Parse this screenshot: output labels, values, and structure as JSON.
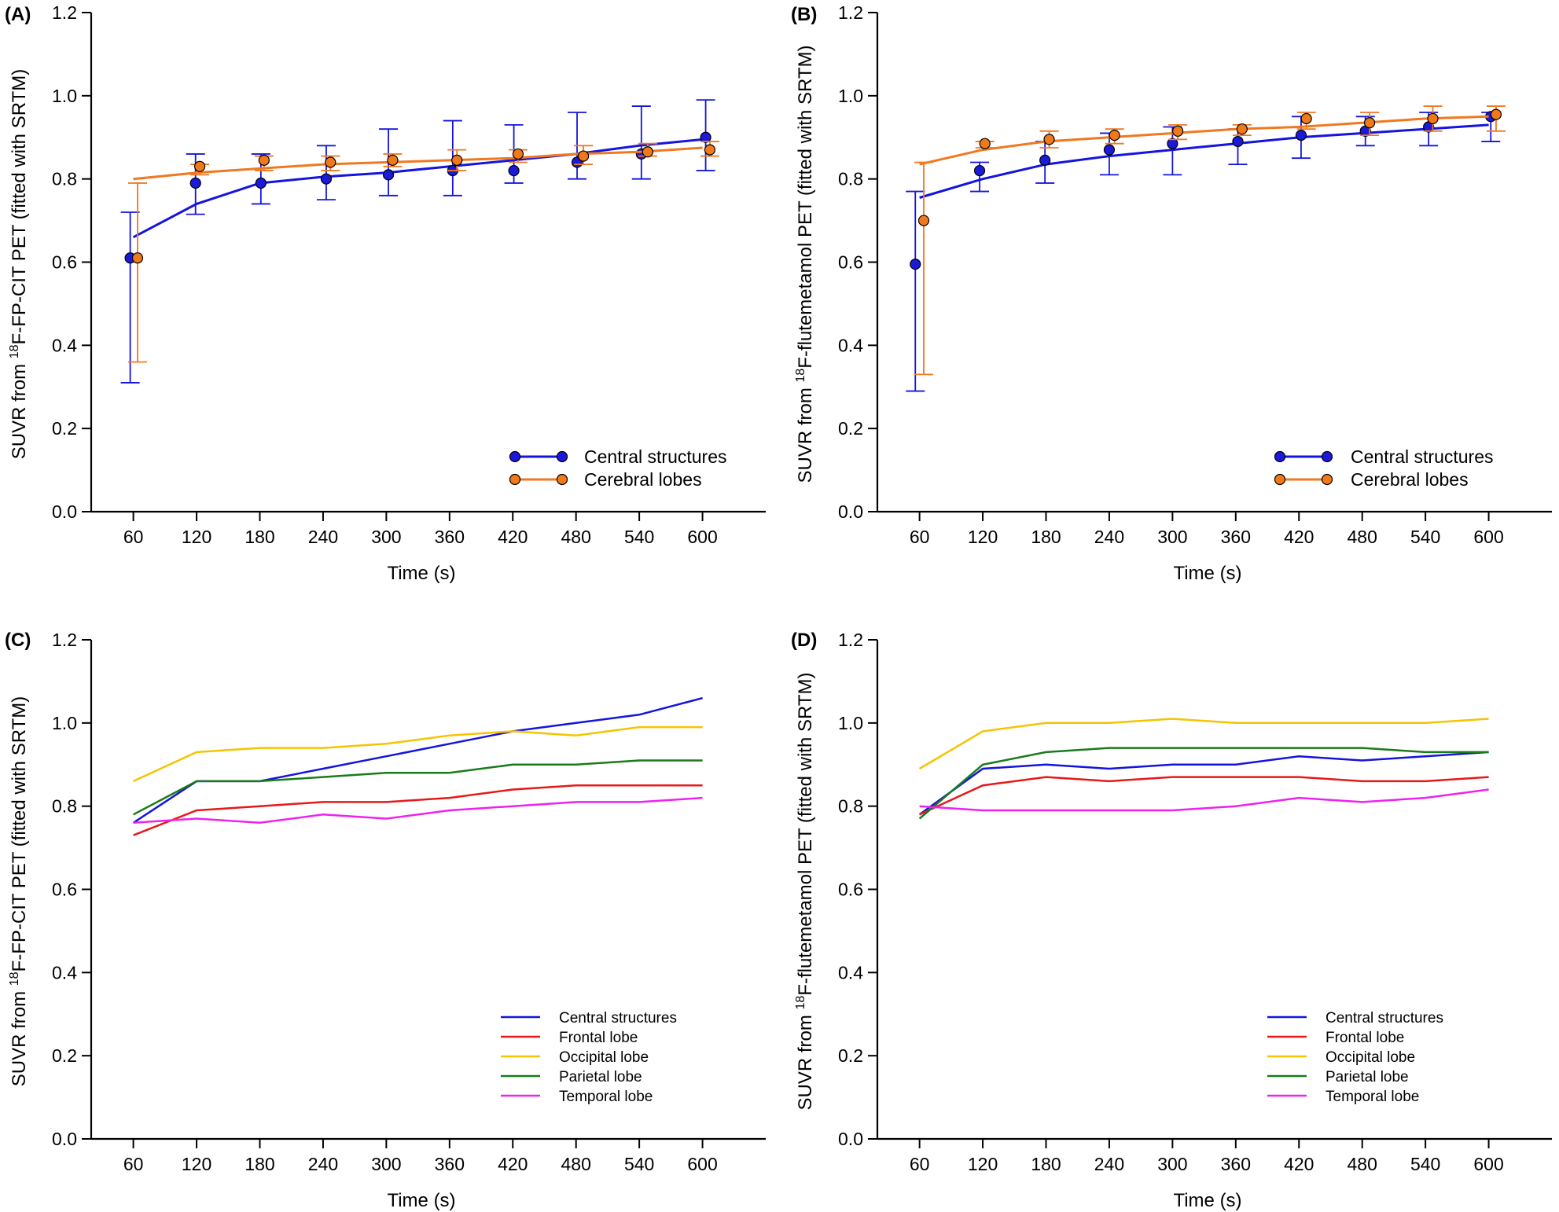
{
  "colors": {
    "central": "#1414e0",
    "cerebral": "#f07820",
    "frontal": "#e81818",
    "occipital": "#f5c400",
    "parietal": "#1b7a1b",
    "temporal": "#ee22ee",
    "markerCentral": "#1a1ad8",
    "markerCerebral": "#f07a1a",
    "axis": "#000000"
  },
  "chart_data": [
    {
      "id": "A",
      "panel_label": "(A)",
      "type": "line",
      "xlabel": "Time (s)",
      "ylabel_pre": "SUVR from ",
      "ylabel_sup": "18",
      "ylabel_post": "F-FP-CIT PET (fitted with SRTM)",
      "xlim": [
        20,
        660
      ],
      "ylim": [
        0,
        1.2
      ],
      "x_ticks": [
        60,
        120,
        180,
        240,
        300,
        360,
        420,
        480,
        540,
        600
      ],
      "y_ticks": [
        "0.0",
        "0.2",
        "0.4",
        "0.6",
        "0.8",
        "1.0",
        "1.2"
      ],
      "legend_position": "bottom-right",
      "series": [
        {
          "name": "Central structures",
          "color_key": "central",
          "marker": "circle",
          "fit_x": [
            60,
            120,
            180,
            240,
            300,
            360,
            420,
            480,
            540,
            600
          ],
          "fit_y": [
            0.66,
            0.74,
            0.79,
            0.805,
            0.815,
            0.83,
            0.845,
            0.86,
            0.88,
            0.895
          ],
          "points_x": [
            57,
            119,
            181,
            243,
            302,
            363,
            421,
            481,
            542,
            603
          ],
          "points_y": [
            0.61,
            0.79,
            0.79,
            0.8,
            0.81,
            0.82,
            0.82,
            0.84,
            0.86,
            0.9
          ],
          "err_low": [
            0.31,
            0.715,
            0.74,
            0.75,
            0.76,
            0.76,
            0.79,
            0.8,
            0.8,
            0.82
          ],
          "err_high": [
            0.72,
            0.86,
            0.86,
            0.88,
            0.92,
            0.94,
            0.93,
            0.96,
            0.975,
            0.99
          ]
        },
        {
          "name": "Cerebral lobes",
          "color_key": "cerebral",
          "marker": "circle",
          "fit_x": [
            60,
            120,
            180,
            240,
            300,
            360,
            420,
            480,
            540,
            600
          ],
          "fit_y": [
            0.8,
            0.815,
            0.825,
            0.835,
            0.84,
            0.845,
            0.85,
            0.86,
            0.865,
            0.875
          ],
          "points_x": [
            64,
            123,
            184,
            247,
            306,
            367,
            425,
            487,
            548,
            607
          ],
          "points_y": [
            0.61,
            0.83,
            0.845,
            0.84,
            0.845,
            0.845,
            0.86,
            0.855,
            0.865,
            0.87
          ],
          "err_low": [
            0.36,
            0.81,
            0.82,
            0.82,
            0.83,
            0.82,
            0.84,
            0.835,
            0.855,
            0.855
          ],
          "err_high": [
            0.79,
            0.835,
            0.855,
            0.855,
            0.86,
            0.87,
            0.87,
            0.88,
            0.885,
            0.89
          ]
        }
      ]
    },
    {
      "id": "B",
      "panel_label": "(B)",
      "type": "line",
      "xlabel": "Time (s)",
      "ylabel_pre": "SUVR from ",
      "ylabel_sup": "18",
      "ylabel_post": "F-flutemetamol PET (fitted with SRTM)",
      "xlim": [
        20,
        660
      ],
      "ylim": [
        0,
        1.2
      ],
      "x_ticks": [
        60,
        120,
        180,
        240,
        300,
        360,
        420,
        480,
        540,
        600
      ],
      "y_ticks": [
        "0.0",
        "0.2",
        "0.4",
        "0.6",
        "0.8",
        "1.0",
        "1.2"
      ],
      "legend_position": "bottom-right",
      "series": [
        {
          "name": "Central structures",
          "color_key": "central",
          "marker": "circle",
          "fit_x": [
            60,
            120,
            180,
            240,
            300,
            360,
            420,
            480,
            540,
            600
          ],
          "fit_y": [
            0.755,
            0.8,
            0.835,
            0.855,
            0.87,
            0.885,
            0.9,
            0.91,
            0.92,
            0.93
          ],
          "points_x": [
            56,
            117,
            179,
            240,
            300,
            362,
            422,
            483,
            543,
            602
          ],
          "points_y": [
            0.595,
            0.82,
            0.845,
            0.87,
            0.885,
            0.89,
            0.905,
            0.915,
            0.925,
            0.95
          ],
          "err_low": [
            0.29,
            0.77,
            0.79,
            0.81,
            0.81,
            0.835,
            0.85,
            0.88,
            0.88,
            0.89
          ],
          "err_high": [
            0.77,
            0.84,
            0.89,
            0.91,
            0.925,
            0.92,
            0.95,
            0.95,
            0.96,
            0.96
          ]
        },
        {
          "name": "Cerebral lobes",
          "color_key": "cerebral",
          "marker": "circle",
          "fit_x": [
            60,
            120,
            180,
            240,
            300,
            360,
            420,
            480,
            540,
            600
          ],
          "fit_y": [
            0.835,
            0.87,
            0.89,
            0.9,
            0.91,
            0.92,
            0.925,
            0.935,
            0.945,
            0.95
          ],
          "points_x": [
            64,
            122,
            183,
            245,
            305,
            366,
            427,
            487,
            547,
            607
          ],
          "points_y": [
            0.7,
            0.885,
            0.895,
            0.905,
            0.915,
            0.92,
            0.945,
            0.935,
            0.945,
            0.955
          ],
          "err_low": [
            0.33,
            0.875,
            0.875,
            0.885,
            0.895,
            0.905,
            0.92,
            0.905,
            0.915,
            0.915
          ],
          "err_high": [
            0.84,
            0.89,
            0.915,
            0.92,
            0.93,
            0.93,
            0.96,
            0.96,
            0.975,
            0.975
          ]
        }
      ]
    },
    {
      "id": "C",
      "panel_label": "(C)",
      "type": "line",
      "xlabel": "Time (s)",
      "ylabel_pre": "SUVR from ",
      "ylabel_sup": "18",
      "ylabel_post": "F-FP-CIT PET (fitted with SRTM)",
      "xlim": [
        20,
        660
      ],
      "ylim": [
        0,
        1.2
      ],
      "x_ticks": [
        60,
        120,
        180,
        240,
        300,
        360,
        420,
        480,
        540,
        600
      ],
      "y_ticks": [
        "0.0",
        "0.2",
        "0.4",
        "0.6",
        "0.8",
        "1.0",
        "1.2"
      ],
      "legend_position": "bottom-right",
      "x": [
        60,
        120,
        180,
        240,
        300,
        360,
        420,
        480,
        540,
        600
      ],
      "series": [
        {
          "name": "Central structures",
          "color_key": "central",
          "values": [
            0.76,
            0.86,
            0.86,
            0.89,
            0.92,
            0.95,
            0.98,
            1.0,
            1.02,
            1.06
          ]
        },
        {
          "name": "Frontal lobe",
          "color_key": "frontal",
          "values": [
            0.73,
            0.79,
            0.8,
            0.81,
            0.81,
            0.82,
            0.84,
            0.85,
            0.85,
            0.85
          ]
        },
        {
          "name": "Occipital lobe",
          "color_key": "occipital",
          "values": [
            0.86,
            0.93,
            0.94,
            0.94,
            0.95,
            0.97,
            0.98,
            0.97,
            0.99,
            0.99
          ]
        },
        {
          "name": "Parietal lobe",
          "color_key": "parietal",
          "values": [
            0.78,
            0.86,
            0.86,
            0.87,
            0.88,
            0.88,
            0.9,
            0.9,
            0.91,
            0.91
          ]
        },
        {
          "name": "Temporal lobe",
          "color_key": "temporal",
          "values": [
            0.76,
            0.77,
            0.76,
            0.78,
            0.77,
            0.79,
            0.8,
            0.81,
            0.81,
            0.82
          ]
        }
      ]
    },
    {
      "id": "D",
      "panel_label": "(D)",
      "type": "line",
      "xlabel": "Time (s)",
      "ylabel_pre": "SUVR from ",
      "ylabel_sup": "18",
      "ylabel_post": "F-flutemetamol PET (fitted with SRTM)",
      "xlim": [
        20,
        660
      ],
      "ylim": [
        0,
        1.2
      ],
      "x_ticks": [
        60,
        120,
        180,
        240,
        300,
        360,
        420,
        480,
        540,
        600
      ],
      "y_ticks": [
        "0.0",
        "0.2",
        "0.4",
        "0.6",
        "0.8",
        "1.0",
        "1.2"
      ],
      "legend_position": "bottom-right",
      "x": [
        60,
        120,
        180,
        240,
        300,
        360,
        420,
        480,
        540,
        600
      ],
      "series": [
        {
          "name": "Central structures",
          "color_key": "central",
          "values": [
            0.78,
            0.89,
            0.9,
            0.89,
            0.9,
            0.9,
            0.92,
            0.91,
            0.92,
            0.93
          ]
        },
        {
          "name": "Frontal lobe",
          "color_key": "frontal",
          "values": [
            0.78,
            0.85,
            0.87,
            0.86,
            0.87,
            0.87,
            0.87,
            0.86,
            0.86,
            0.87
          ]
        },
        {
          "name": "Occipital lobe",
          "color_key": "occipital",
          "values": [
            0.89,
            0.98,
            1.0,
            1.0,
            1.01,
            1.0,
            1.0,
            1.0,
            1.0,
            1.01
          ]
        },
        {
          "name": "Parietal lobe",
          "color_key": "parietal",
          "values": [
            0.77,
            0.9,
            0.93,
            0.94,
            0.94,
            0.94,
            0.94,
            0.94,
            0.93,
            0.93
          ]
        },
        {
          "name": "Temporal lobe",
          "color_key": "temporal",
          "values": [
            0.8,
            0.79,
            0.79,
            0.79,
            0.79,
            0.8,
            0.82,
            0.81,
            0.82,
            0.84
          ]
        }
      ]
    }
  ]
}
